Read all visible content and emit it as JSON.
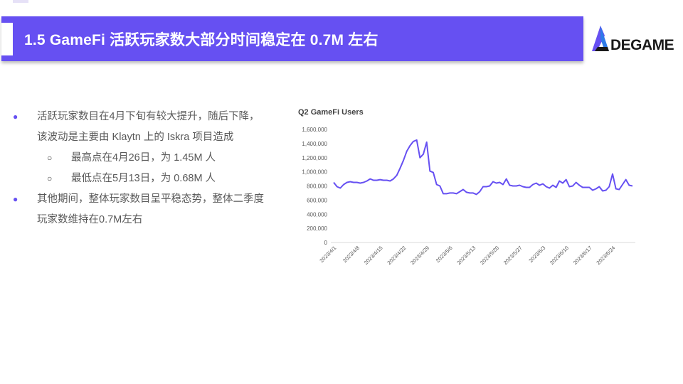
{
  "header": {
    "title": "1.5  GameFi 活跃玩家数大部分时间稳定在 0.7M 左右"
  },
  "logo": {
    "text": "DEGAME"
  },
  "bullets": [
    {
      "level": 1,
      "text": "活跃玩家数目在4月下旬有较大提升，随后下降，该波动是主要由 Klaytn 上的 Iskra 项目造成"
    },
    {
      "level": 2,
      "text": "最高点在4月26日，为 1.45M 人"
    },
    {
      "level": 2,
      "text": "最低点在5月13日，为 0.68M 人"
    },
    {
      "level": 1,
      "text": "其他期间，整体玩家数目呈平稳态势，整体二季度玩家数维持在0.7M左右"
    }
  ],
  "colors": {
    "accent": "#6650f2",
    "line": "#6650f2"
  },
  "chart_data": {
    "type": "line",
    "title": "Q2 GameFi Users",
    "ylim": [
      0,
      1600000
    ],
    "yticks": [
      "0",
      "200,000",
      "400,000",
      "600,000",
      "800,000",
      "1,000,000",
      "1,200,000",
      "1,400,000",
      "1,600,000"
    ],
    "xticks": [
      "2023/4/1",
      "2023/4/8",
      "2023/4/15",
      "2023/4/22",
      "2023/4/29",
      "2023/5/6",
      "2023/5/13",
      "2023/5/20",
      "2023/5/27",
      "2023/6/3",
      "2023/6/10",
      "2023/6/17",
      "2023/6/24"
    ],
    "series": [
      {
        "values": [
          850000,
          790000,
          770000,
          820000,
          850000,
          860000,
          850000,
          850000,
          840000,
          850000,
          870000,
          900000,
          880000,
          880000,
          890000,
          880000,
          880000,
          870000,
          900000,
          950000,
          1050000,
          1160000,
          1290000,
          1370000,
          1430000,
          1450000,
          1200000,
          1250000,
          1420000,
          1010000,
          990000,
          820000,
          800000,
          690000,
          690000,
          700000,
          700000,
          690000,
          720000,
          750000,
          710000,
          700000,
          700000,
          680000,
          720000,
          790000,
          790000,
          800000,
          860000,
          840000,
          850000,
          820000,
          900000,
          810000,
          800000,
          800000,
          810000,
          790000,
          780000,
          780000,
          820000,
          840000,
          810000,
          830000,
          790000,
          770000,
          810000,
          780000,
          870000,
          840000,
          890000,
          790000,
          800000,
          850000,
          810000,
          780000,
          780000,
          780000,
          740000,
          760000,
          790000,
          730000,
          740000,
          790000,
          970000,
          760000,
          750000,
          820000,
          890000,
          810000,
          800000
        ]
      }
    ]
  }
}
